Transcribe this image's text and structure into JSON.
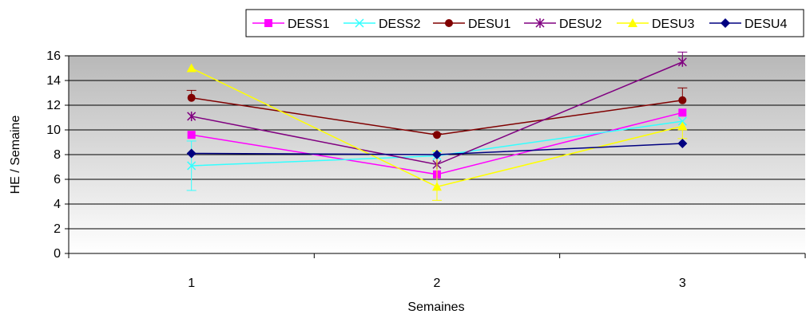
{
  "chart_data": {
    "type": "line",
    "xlabel": "Semaines",
    "ylabel": "HE / Semaine",
    "x": [
      "1",
      "2",
      "3"
    ],
    "ylim": [
      0,
      16
    ],
    "yticks": [
      0,
      2,
      4,
      6,
      8,
      10,
      12,
      14,
      16
    ],
    "grid": "horizontal",
    "background": "vertical gradient, grey at top to white at bottom",
    "legend_position": "top-right",
    "series": [
      {
        "name": "DESS1",
        "values": [
          9.6,
          6.4,
          11.4
        ],
        "color": "#ff00ff",
        "marker": "square",
        "error": [
          [
            null,
            null
          ],
          [
            null,
            null
          ],
          [
            null,
            null
          ]
        ]
      },
      {
        "name": "DESS2",
        "values": [
          7.1,
          7.9,
          10.7
        ],
        "color": "#33ffff",
        "marker": "x",
        "error": [
          [
            5.1,
            9.1
          ],
          [
            null,
            null
          ],
          [
            null,
            null
          ]
        ]
      },
      {
        "name": "DESU1",
        "values": [
          12.6,
          9.6,
          12.4
        ],
        "color": "#800000",
        "marker": "circle",
        "error": [
          [
            null,
            13.2
          ],
          [
            null,
            9.7
          ],
          [
            null,
            13.4
          ]
        ]
      },
      {
        "name": "DESU2",
        "values": [
          11.1,
          7.2,
          15.5
        ],
        "color": "#800080",
        "marker": "star",
        "error": [
          [
            null,
            null
          ],
          [
            null,
            null
          ],
          [
            null,
            16.3
          ]
        ]
      },
      {
        "name": "DESU3",
        "values": [
          15.0,
          5.4,
          10.3
        ],
        "color": "#ffff00",
        "marker": "triangle",
        "error": [
          [
            null,
            null
          ],
          [
            4.3,
            8.3
          ],
          [
            9.3,
            null
          ]
        ]
      },
      {
        "name": "DESU4",
        "values": [
          8.1,
          8.0,
          8.9
        ],
        "color": "#000080",
        "marker": "diamond",
        "error": [
          [
            null,
            null
          ],
          [
            null,
            null
          ],
          [
            null,
            null
          ]
        ]
      }
    ]
  }
}
